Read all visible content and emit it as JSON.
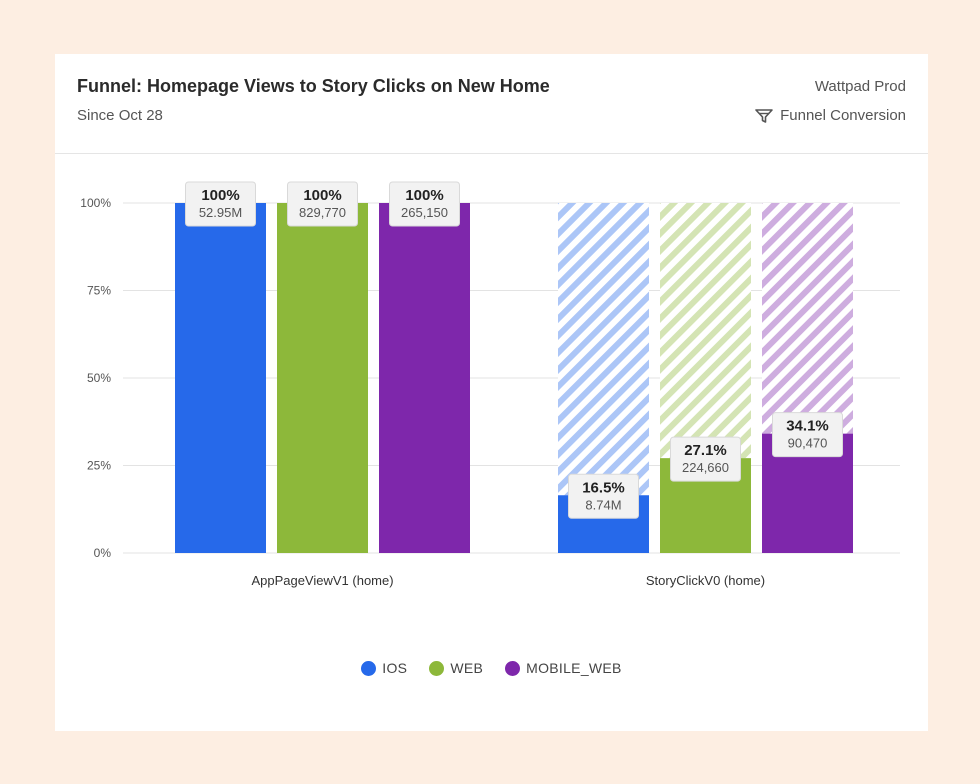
{
  "header": {
    "title": "Funnel: Homepage Views to Story Clicks on New Home",
    "subtitle": "Since Oct 28",
    "project": "Wattpad Prod",
    "analysis_type": "Funnel Conversion",
    "analysis_icon": "funnel-icon"
  },
  "chart_data": {
    "type": "bar",
    "stacked_remainder": true,
    "categories": [
      "AppPageViewV1 (home)",
      "StoryClickV0 (home)"
    ],
    "y_ticks": [
      "0%",
      "25%",
      "50%",
      "75%",
      "100%"
    ],
    "ylim": [
      0,
      100
    ],
    "grid": true,
    "legend_position": "bottom",
    "series": [
      {
        "name": "IOS",
        "color": "#2669ea",
        "percents": [
          100,
          16.5
        ],
        "percent_labels": [
          "100%",
          "16.5%"
        ],
        "count_labels": [
          "52.95M",
          "8.74M"
        ]
      },
      {
        "name": "WEB",
        "color": "#8db83a",
        "percents": [
          100,
          27.1
        ],
        "percent_labels": [
          "100%",
          "27.1%"
        ],
        "count_labels": [
          "829,770",
          "224,660"
        ]
      },
      {
        "name": "MOBILE_WEB",
        "color": "#7e27ab",
        "percents": [
          100,
          34.1
        ],
        "percent_labels": [
          "100%",
          "34.1%"
        ],
        "count_labels": [
          "265,150",
          "90,470"
        ]
      }
    ]
  },
  "legend": [
    {
      "label": "IOS",
      "color": "#2669ea"
    },
    {
      "label": "WEB",
      "color": "#8db83a"
    },
    {
      "label": "MOBILE_WEB",
      "color": "#7e27ab"
    }
  ]
}
